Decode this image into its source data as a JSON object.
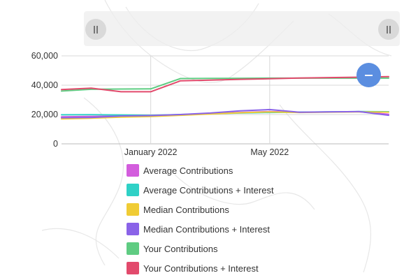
{
  "controls": {
    "zoom_out_icon": "minus-icon",
    "range_handle_icon": "grip-icon"
  },
  "chart_data": {
    "type": "line",
    "x": [
      "2021-10",
      "2021-11",
      "2021-12",
      "2022-01",
      "2022-02",
      "2022-03",
      "2022-04",
      "2022-05",
      "2022-06",
      "2022-07",
      "2022-08",
      "2022-09"
    ],
    "xticks": [
      "January 2022",
      "May 2022"
    ],
    "yticks": [
      "0",
      "20,000",
      "40,000",
      "60,000"
    ],
    "ylim": [
      0,
      60000
    ],
    "grid": true,
    "legend_position": "bottom",
    "series": [
      {
        "name": "Average Contributions",
        "color": "#d35ddd",
        "values": [
          18500,
          18700,
          18900,
          19200,
          19800,
          20600,
          21400,
          22000,
          21500,
          21700,
          21900,
          20200
        ]
      },
      {
        "name": "Average Contributions + Interest",
        "color": "#2fd1c6",
        "values": [
          19800,
          19900,
          19700,
          19500,
          20000,
          20500,
          21000,
          21400,
          21600,
          21800,
          22000,
          21900
        ]
      },
      {
        "name": "Median Contributions",
        "color": "#f0cc35",
        "values": [
          17000,
          17500,
          18200,
          18600,
          19500,
          20400,
          21200,
          21800,
          21400,
          21600,
          21800,
          21600
        ]
      },
      {
        "name": "Median Contributions + Interest",
        "color": "#8a63e8",
        "values": [
          17800,
          18000,
          19000,
          19300,
          20000,
          21000,
          22500,
          23400,
          21500,
          21800,
          22000,
          19500
        ]
      },
      {
        "name": "Your Contributions",
        "color": "#5fcc82",
        "values": [
          36000,
          37200,
          37400,
          37500,
          44500,
          44600,
          44700,
          44800,
          44800,
          44800,
          44800,
          44800
        ]
      },
      {
        "name": "Your Contributions + Interest",
        "color": "#e24a6c",
        "values": [
          37000,
          38000,
          35500,
          35500,
          43000,
          43500,
          44000,
          44400,
          44900,
          45200,
          45500,
          45800
        ]
      }
    ]
  }
}
